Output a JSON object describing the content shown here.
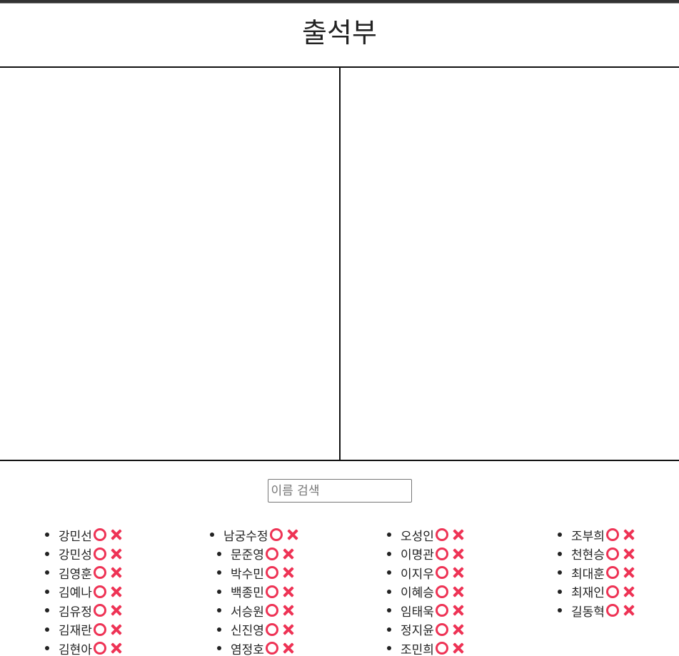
{
  "title": "출석부",
  "search": {
    "placeholder": "이름 검색",
    "value": ""
  },
  "mark_color": "#ee3355",
  "icons": {
    "present": "circle-o-icon",
    "absent": "cross-x-icon"
  },
  "columns": [
    [
      "강민선",
      "강민성",
      "김영훈",
      "김예나",
      "김유정",
      "김재란",
      "김현아"
    ],
    [
      "남궁수정",
      "문준영",
      "박수민",
      "백종민",
      "서승원",
      "신진영",
      "염정호"
    ],
    [
      "오성인",
      "이명관",
      "이지우",
      "이혜승",
      "임태욱",
      "정지윤",
      "조민희"
    ],
    [
      "조부희",
      "천현승",
      "최대훈",
      "최재인",
      "길동혁"
    ]
  ]
}
